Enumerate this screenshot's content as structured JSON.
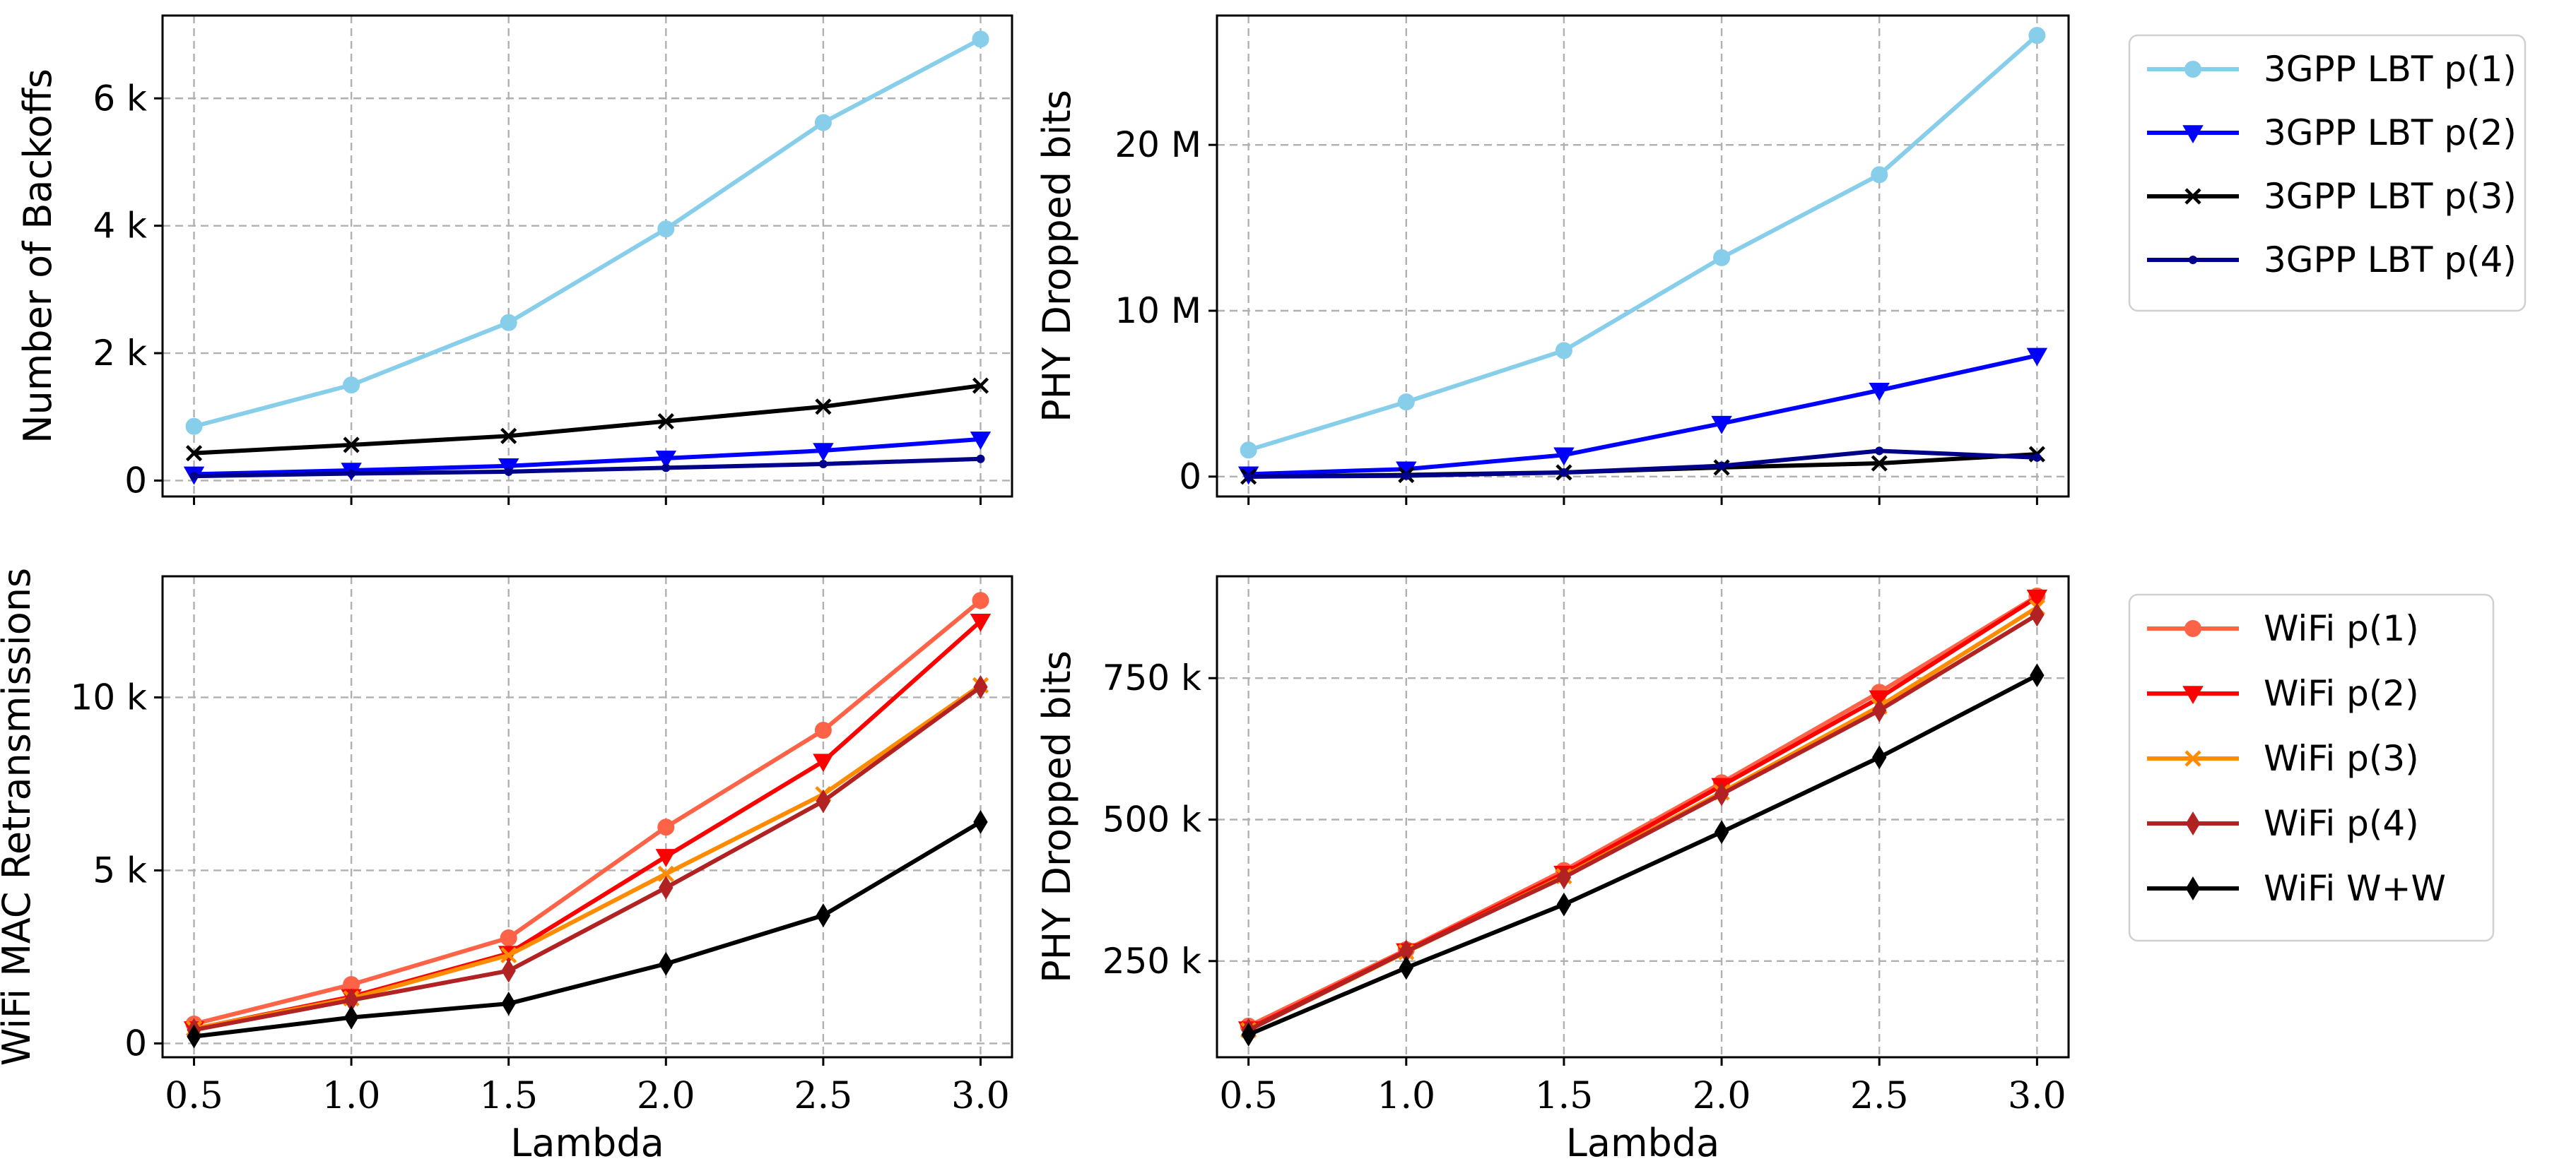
{
  "chart_data": [
    {
      "id": "top-left",
      "type": "line",
      "title": "",
      "xlabel": "",
      "ylabel": "Number of Backoffs",
      "x": [
        0.5,
        1.0,
        1.5,
        2.0,
        2.5,
        3.0
      ],
      "xlim": [
        0.4,
        3.1
      ],
      "ylim": [
        -250,
        7300
      ],
      "yticks": [
        0,
        2000,
        4000,
        6000
      ],
      "ytick_labels": [
        "0",
        "2 k",
        "4 k",
        "6 k"
      ],
      "xtick_labels_shown": false,
      "grid": true,
      "series": [
        {
          "name": "3GPP LBT p(1)",
          "color": "#87CEEB",
          "marker": "circle",
          "values": [
            850,
            1500,
            2480,
            3950,
            5620,
            6930
          ]
        },
        {
          "name": "3GPP LBT p(2)",
          "color": "#0000FF",
          "marker": "triangle-down",
          "values": [
            100,
            160,
            230,
            350,
            470,
            650
          ]
        },
        {
          "name": "3GPP LBT p(3)",
          "color": "#000000",
          "marker": "x",
          "values": [
            430,
            560,
            700,
            930,
            1160,
            1490
          ]
        },
        {
          "name": "3GPP LBT p(4)",
          "color": "#00008B",
          "marker": "dot",
          "values": [
            70,
            110,
            140,
            200,
            260,
            340
          ]
        }
      ]
    },
    {
      "id": "top-right",
      "type": "line",
      "title": "",
      "xlabel": "",
      "ylabel": "PHY Dropped bits",
      "x": [
        0.5,
        1.0,
        1.5,
        2.0,
        2.5,
        3.0
      ],
      "xlim": [
        0.4,
        3.1
      ],
      "ylim": [
        -1200000,
        27800000
      ],
      "yticks": [
        0,
        10000000,
        20000000
      ],
      "ytick_labels": [
        "0",
        "10 M",
        "20 M"
      ],
      "xtick_labels_shown": false,
      "grid": true,
      "series": [
        {
          "name": "3GPP LBT p(1)",
          "color": "#87CEEB",
          "marker": "circle",
          "values": [
            1600000,
            4500000,
            7600000,
            13200000,
            18200000,
            26600000
          ]
        },
        {
          "name": "3GPP LBT p(2)",
          "color": "#0000FF",
          "marker": "triangle-down",
          "values": [
            150000,
            450000,
            1300000,
            3200000,
            5200000,
            7300000
          ]
        },
        {
          "name": "3GPP LBT p(3)",
          "color": "#000000",
          "marker": "x",
          "values": [
            0,
            100000,
            250000,
            550000,
            800000,
            1350000
          ]
        },
        {
          "name": "3GPP LBT p(4)",
          "color": "#00008B",
          "marker": "dot",
          "values": [
            0,
            50000,
            250000,
            650000,
            1550000,
            1150000
          ]
        }
      ]
    },
    {
      "id": "bottom-left",
      "type": "line",
      "title": "",
      "xlabel": "Lambda",
      "ylabel": "WiFi MAC Retransmissions",
      "x": [
        0.5,
        1.0,
        1.5,
        2.0,
        2.5,
        3.0
      ],
      "xlim": [
        0.4,
        3.1
      ],
      "ylim": [
        -400,
        13500
      ],
      "yticks": [
        0,
        5000,
        10000
      ],
      "ytick_labels": [
        "0",
        "5 k",
        "10 k"
      ],
      "xtick_labels": [
        "0.5",
        "1.0",
        "1.5",
        "2.0",
        "2.5",
        "3.0"
      ],
      "xtick_labels_shown": true,
      "grid": true,
      "series": [
        {
          "name": "WiFi p(1)",
          "color": "#FF6347",
          "marker": "circle",
          "values": [
            560,
            1700,
            3050,
            6250,
            9050,
            12800
          ]
        },
        {
          "name": "WiFi p(2)",
          "color": "#FF0000",
          "marker": "triangle-down",
          "values": [
            420,
            1350,
            2600,
            5400,
            8150,
            12200
          ]
        },
        {
          "name": "WiFi p(3)",
          "color": "#FF8C00",
          "marker": "x",
          "values": [
            430,
            1300,
            2550,
            4900,
            7200,
            10350
          ]
        },
        {
          "name": "WiFi p(4)",
          "color": "#B22222",
          "marker": "thin-diamond",
          "values": [
            390,
            1250,
            2100,
            4500,
            7000,
            10300
          ]
        },
        {
          "name": "WiFi W+W",
          "color": "#000000",
          "marker": "thin-diamond",
          "values": [
            200,
            750,
            1150,
            2300,
            3700,
            6400
          ]
        }
      ]
    },
    {
      "id": "bottom-right",
      "type": "line",
      "title": "",
      "xlabel": "Lambda",
      "ylabel": "PHY Dropped bits",
      "x": [
        0.5,
        1.0,
        1.5,
        2.0,
        2.5,
        3.0
      ],
      "xlim": [
        0.4,
        3.1
      ],
      "ylim": [
        80000,
        930000
      ],
      "yticks": [
        250000,
        500000,
        750000
      ],
      "ytick_labels": [
        "250 k",
        "500 k",
        "750 k"
      ],
      "xtick_labels": [
        "0.5",
        "1.0",
        "1.5",
        "2.0",
        "2.5",
        "3.0"
      ],
      "xtick_labels_shown": true,
      "grid": true,
      "series": [
        {
          "name": "WiFi p(1)",
          "color": "#FF6347",
          "marker": "circle",
          "values": [
            135000,
            270000,
            410000,
            565000,
            725000,
            895000
          ]
        },
        {
          "name": "WiFi p(2)",
          "color": "#FF0000",
          "marker": "triangle-down",
          "values": [
            130000,
            268000,
            405000,
            560000,
            715000,
            893000
          ]
        },
        {
          "name": "WiFi p(3)",
          "color": "#FF8C00",
          "marker": "x",
          "values": [
            128000,
            266000,
            400000,
            548000,
            700000,
            875000
          ]
        },
        {
          "name": "WiFi p(4)",
          "color": "#B22222",
          "marker": "thin-diamond",
          "values": [
            128000,
            267000,
            398000,
            545000,
            693000,
            862000
          ]
        },
        {
          "name": "WiFi W+W",
          "color": "#000000",
          "marker": "thin-diamond",
          "values": [
            120000,
            238000,
            350000,
            478000,
            610000,
            755000
          ]
        }
      ]
    }
  ],
  "legends": [
    {
      "id": "legend-top",
      "entries": [
        "3GPP LBT p(1)",
        "3GPP LBT p(2)",
        "3GPP LBT p(3)",
        "3GPP LBT p(4)"
      ],
      "colors": [
        "#87CEEB",
        "#0000FF",
        "#000000",
        "#00008B"
      ],
      "markers": [
        "circle",
        "triangle-down",
        "x",
        "dot"
      ]
    },
    {
      "id": "legend-bottom",
      "entries": [
        "WiFi p(1)",
        "WiFi p(2)",
        "WiFi p(3)",
        "WiFi p(4)",
        "WiFi W+W"
      ],
      "colors": [
        "#FF6347",
        "#FF0000",
        "#FF8C00",
        "#B22222",
        "#000000"
      ],
      "markers": [
        "circle",
        "triangle-down",
        "x",
        "thin-diamond",
        "thin-diamond"
      ]
    }
  ]
}
